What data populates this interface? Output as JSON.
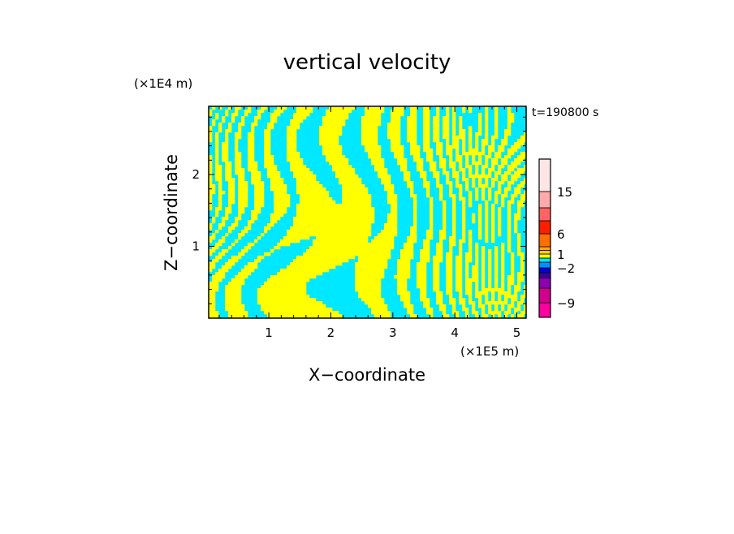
{
  "chart_data": {
    "type": "heatmap",
    "title": "vertical velocity",
    "xlabel": "X−coordinate",
    "ylabel": "Z−coordinate",
    "x_scale_label": "(×1E5 m)",
    "y_scale_label": "(×1E4 m)",
    "time_label": "t=190800 s",
    "xlim": [
      0.03,
      5.15
    ],
    "ylim": [
      0.0,
      2.95
    ],
    "x_ticks": [
      1,
      2,
      3,
      4,
      5
    ],
    "y_ticks": [
      1,
      2
    ],
    "field_colors": {
      "positive": "#ffff00",
      "negative": "#00e8ff"
    },
    "colorbar": {
      "bands": [
        {
          "lo": -12,
          "hi": -9,
          "color": "#ff00a0"
        },
        {
          "lo": -9,
          "hi": -6,
          "color": "#d0008c"
        },
        {
          "lo": -6,
          "hi": -4,
          "color": "#8c00b4"
        },
        {
          "lo": -4,
          "hi": -3,
          "color": "#3c00a0"
        },
        {
          "lo": -3,
          "hi": -2,
          "color": "#0000dc"
        },
        {
          "lo": -2,
          "hi": -1,
          "color": "#0090ff"
        },
        {
          "lo": -1,
          "hi": 0,
          "color": "#00e8ff"
        },
        {
          "lo": 0,
          "hi": 1,
          "color": "#ffff00"
        },
        {
          "lo": 1,
          "hi": 2,
          "color": "#ffd200"
        },
        {
          "lo": 2,
          "hi": 3,
          "color": "#ffaa00"
        },
        {
          "lo": 3,
          "hi": 6,
          "color": "#ff6e00"
        },
        {
          "lo": 6,
          "hi": 9,
          "color": "#ff1e00"
        },
        {
          "lo": 9,
          "hi": 12,
          "color": "#ff6464"
        },
        {
          "lo": 12,
          "hi": 15,
          "color": "#ffaaaa"
        },
        {
          "lo": 15,
          "hi": 20,
          "color": "#ffe6e6"
        }
      ],
      "labels": [
        {
          "value": 15,
          "text": "15"
        },
        {
          "value": 6,
          "text": "6"
        },
        {
          "value": 1,
          "text": "1"
        },
        {
          "value": -2,
          "text": "−2"
        },
        {
          "value": -9,
          "text": "−9"
        }
      ]
    }
  }
}
